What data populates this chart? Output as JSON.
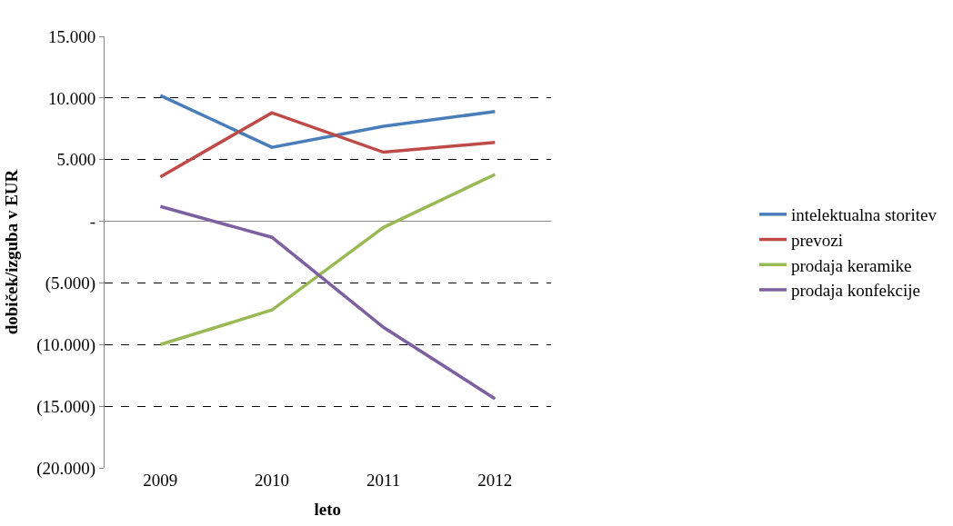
{
  "chart_data": {
    "type": "line",
    "xlabel": "leto",
    "ylabel": "dobiček/izguba v EUR",
    "categories": [
      "2009",
      "2010",
      "2011",
      "2012"
    ],
    "series": [
      {
        "name": "intelektualna storitev",
        "color": "#4a7ebb",
        "values": [
          10200,
          6000,
          7700,
          8900
        ]
      },
      {
        "name": "prevozi",
        "color": "#be4b48",
        "values": [
          3600,
          8800,
          5600,
          6400
        ]
      },
      {
        "name": "prodaja keramike",
        "color": "#98b954",
        "values": [
          -10000,
          -7200,
          -500,
          3800
        ]
      },
      {
        "name": "prodaja konfekcije",
        "color": "#7d60a0",
        "values": [
          1200,
          -1300,
          -8600,
          -14400
        ]
      }
    ],
    "ylim": [
      -20000,
      15000
    ],
    "yticks": [
      {
        "value": 15000,
        "label": "15.000"
      },
      {
        "value": 10000,
        "label": "10.000"
      },
      {
        "value": 5000,
        "label": "5.000"
      },
      {
        "value": 0,
        "label": "-"
      },
      {
        "value": -5000,
        "label": "(5.000)"
      },
      {
        "value": -10000,
        "label": "(10.000)"
      },
      {
        "value": -15000,
        "label": "(15.000)"
      },
      {
        "value": -20000,
        "label": "(20.000)"
      }
    ],
    "grid": "y",
    "legend": "right",
    "marker": "none",
    "line_style": "solid"
  }
}
